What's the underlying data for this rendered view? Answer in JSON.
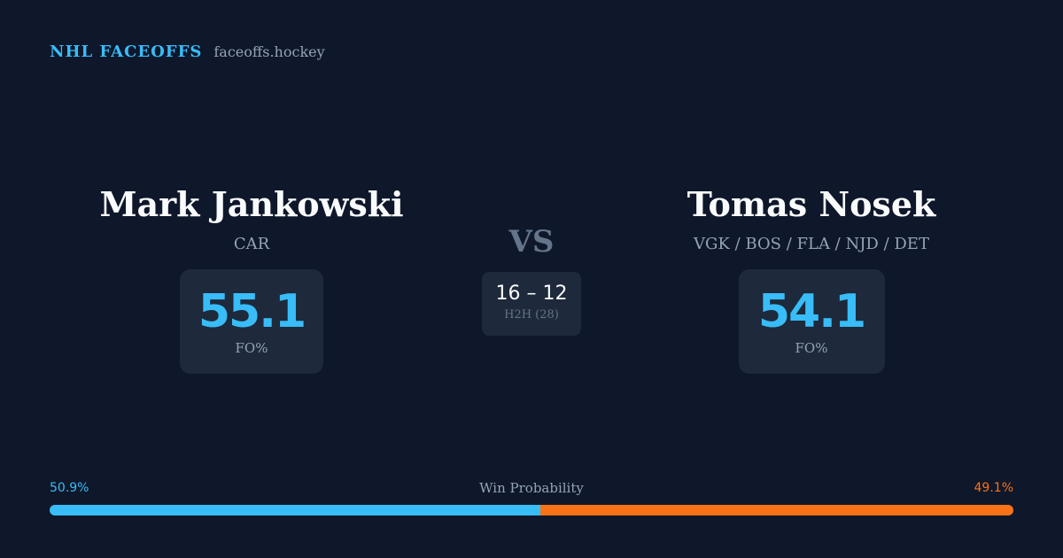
{
  "brand": {
    "name": "NHL FACEOFFS",
    "url": "faceoffs.hockey"
  },
  "player_left": {
    "name": "Mark Jankowski",
    "team": "CAR",
    "fo_pct": "55.1",
    "fo_label": "FO%"
  },
  "player_right": {
    "name": "Tomas Nosek",
    "team": "VGK / BOS / FLA / NJD / DET",
    "fo_pct": "54.1",
    "fo_label": "FO%"
  },
  "versus": {
    "label": "VS",
    "h2h_score": "16 – 12",
    "h2h_label": "H2H (28)"
  },
  "win_probability": {
    "title": "Win Probability",
    "left_label": "50.9%",
    "right_label": "49.1%",
    "left_value": 50.9,
    "right_value": 49.1
  },
  "colors": {
    "background": "#0f172a",
    "card": "#1e293b",
    "accent_blue": "#38bdf8",
    "accent_orange": "#f97316"
  }
}
